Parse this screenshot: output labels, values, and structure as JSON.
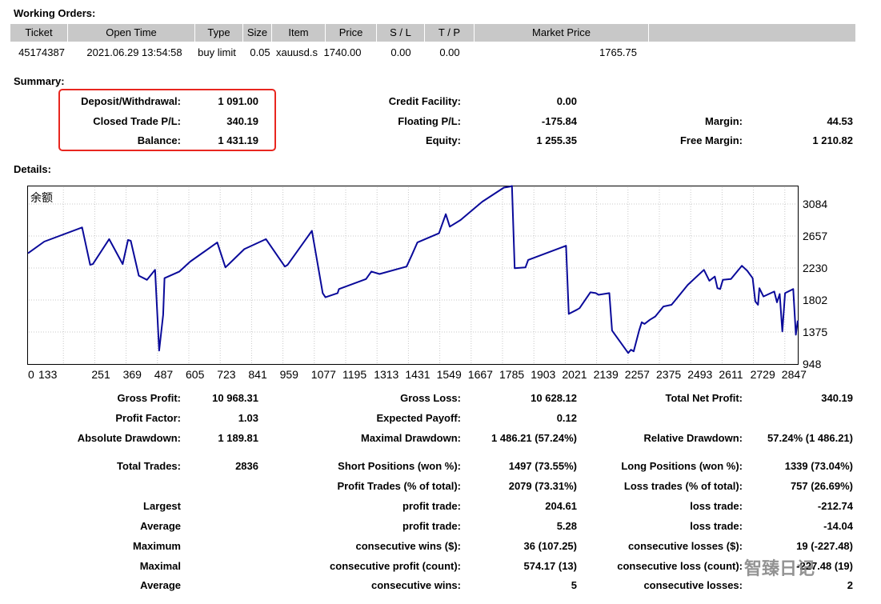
{
  "sections": {
    "working_orders": "Working Orders:",
    "summary": "Summary:",
    "details": "Details:"
  },
  "working_orders": {
    "headers": [
      "Ticket",
      "Open Time",
      "Type",
      "Size",
      "Item",
      "Price",
      "S / L",
      "T / P",
      "Market Price",
      ""
    ],
    "row": [
      "45174387",
      "2021.06.29 13:54:58",
      "buy limit",
      "0.05",
      "xauusd.s",
      "1740.00",
      "0.00",
      "0.00",
      "1765.75"
    ]
  },
  "summary": {
    "deposit_label": "Deposit/Withdrawal:",
    "deposit_value": "1 091.00",
    "closed_label": "Closed Trade P/L:",
    "closed_value": "340.19",
    "balance_label": "Balance:",
    "balance_value": "1 431.19",
    "credit_label": "Credit Facility:",
    "credit_value": "0.00",
    "floating_label": "Floating P/L:",
    "floating_value": "-175.84",
    "equity_label": "Equity:",
    "equity_value": "1 255.35",
    "margin_label": "Margin:",
    "margin_value": "44.53",
    "free_margin_label": "Free Margin:",
    "free_margin_value": "1 210.82"
  },
  "details": {
    "gross_profit_label": "Gross Profit:",
    "gross_profit_value": "10 968.31",
    "gross_loss_label": "Gross Loss:",
    "gross_loss_value": "10 628.12",
    "total_net_label": "Total Net Profit:",
    "total_net_value": "340.19",
    "profit_factor_label": "Profit Factor:",
    "profit_factor_value": "1.03",
    "expected_payoff_label": "Expected Payoff:",
    "expected_payoff_value": "0.12",
    "abs_dd_label": "Absolute Drawdown:",
    "abs_dd_value": "1 189.81",
    "max_dd_label": "Maximal Drawdown:",
    "max_dd_value": "1 486.21 (57.24%)",
    "rel_dd_label": "Relative Drawdown:",
    "rel_dd_value": "57.24% (1 486.21)",
    "total_trades_label": "Total Trades:",
    "total_trades_value": "2836",
    "short_label": "Short Positions (won %):",
    "short_value": "1497 (73.55%)",
    "long_label": "Long Positions (won %):",
    "long_value": "1339 (73.04%)",
    "profit_trades_label": "Profit Trades (% of total):",
    "profit_trades_value": "2079 (73.31%)",
    "loss_trades_label": "Loss trades (% of total):",
    "loss_trades_value": "757 (26.69%)",
    "largest_label": "Largest",
    "largest_profit_label": "profit trade:",
    "largest_profit_value": "204.61",
    "largest_loss_label": "loss trade:",
    "largest_loss_value": "-212.74",
    "average_label": "Average",
    "average_profit_label": "profit trade:",
    "average_profit_value": "5.28",
    "average_loss_label": "loss trade:",
    "average_loss_value": "-14.04",
    "maximum_label": "Maximum",
    "max_wins_label": "consecutive wins ($):",
    "max_wins_value": "36 (107.25)",
    "max_losses_label": "consecutive losses ($):",
    "max_losses_value": "19 (-227.48)",
    "maximal_label": "Maximal",
    "maximal_profit_label": "consecutive profit (count):",
    "maximal_profit_value": "574.17 (13)",
    "maximal_loss_label": "consecutive loss (count):",
    "maximal_loss_value": "-227.48 (19)",
    "avg_cons_label": "Average",
    "avg_cons_wins_label": "consecutive wins:",
    "avg_cons_wins_value": "5",
    "avg_cons_losses_label": "consecutive losses:",
    "avg_cons_losses_value": "2"
  },
  "watermark": "智臻日记",
  "chart_data": {
    "type": "line",
    "title": "余额",
    "x_ticks": [
      "0",
      "133",
      "251",
      "369",
      "487",
      "605",
      "723",
      "841",
      "959",
      "1077",
      "1195",
      "1313",
      "1431",
      "1549",
      "1667",
      "1785",
      "1903",
      "2021",
      "2139",
      "2257",
      "2375",
      "2493",
      "2611",
      "2729",
      "2847"
    ],
    "y_ticks": [
      "3084",
      "2657",
      "2230",
      "1802",
      "1375",
      "948"
    ],
    "ylim": [
      948,
      3084
    ],
    "xlim": [
      0,
      2847
    ],
    "line_color": "#0a0a9a",
    "series": [
      {
        "x": [
          0,
          60,
          200,
          230,
          240,
          300,
          350,
          370,
          380,
          410,
          440,
          470,
          485,
          500,
          505,
          560,
          600,
          700,
          730,
          740,
          800,
          880,
          950,
          960,
          1050,
          1090,
          1100,
          1145,
          1150,
          1250,
          1270,
          1300,
          1400,
          1420,
          1440,
          1520,
          1545,
          1560,
          1600,
          1680,
          1760,
          1780,
          1790,
          1800,
          1840,
          1850,
          1990,
          2000,
          2030,
          2040,
          2080,
          2100,
          2110,
          2150,
          2160,
          2220,
          2230,
          2240,
          2260,
          2270,
          2280,
          2300,
          2320,
          2350,
          2380,
          2400,
          2440,
          2500,
          2520,
          2540,
          2550,
          2560,
          2570,
          2600,
          2640,
          2660,
          2680,
          2690,
          2700,
          2705,
          2720,
          2760,
          2770,
          2780,
          2790,
          2800,
          2830,
          2840,
          2847
        ],
        "y": [
          2280,
          2420,
          2590,
          2140,
          2150,
          2450,
          2150,
          2440,
          2430,
          2010,
          1960,
          2080,
          1110,
          1540,
          1980,
          2060,
          2180,
          2410,
          2110,
          2140,
          2330,
          2450,
          2120,
          2140,
          2550,
          1800,
          1750,
          1800,
          1850,
          1970,
          2060,
          2030,
          2120,
          2260,
          2410,
          2520,
          2750,
          2600,
          2680,
          2900,
          3070,
          3080,
          3090,
          2100,
          2110,
          2200,
          2370,
          1550,
          1600,
          1620,
          1810,
          1800,
          1780,
          1800,
          1350,
          1080,
          1120,
          1100,
          1350,
          1450,
          1430,
          1480,
          1520,
          1640,
          1660,
          1740,
          1900,
          2080,
          1950,
          2000,
          1860,
          1850,
          1960,
          1970,
          2130,
          2070,
          1980,
          1700,
          1660,
          1860,
          1760,
          1820,
          1690,
          1790,
          1340,
          1800,
          1850,
          1300,
          1470
        ]
      }
    ]
  }
}
